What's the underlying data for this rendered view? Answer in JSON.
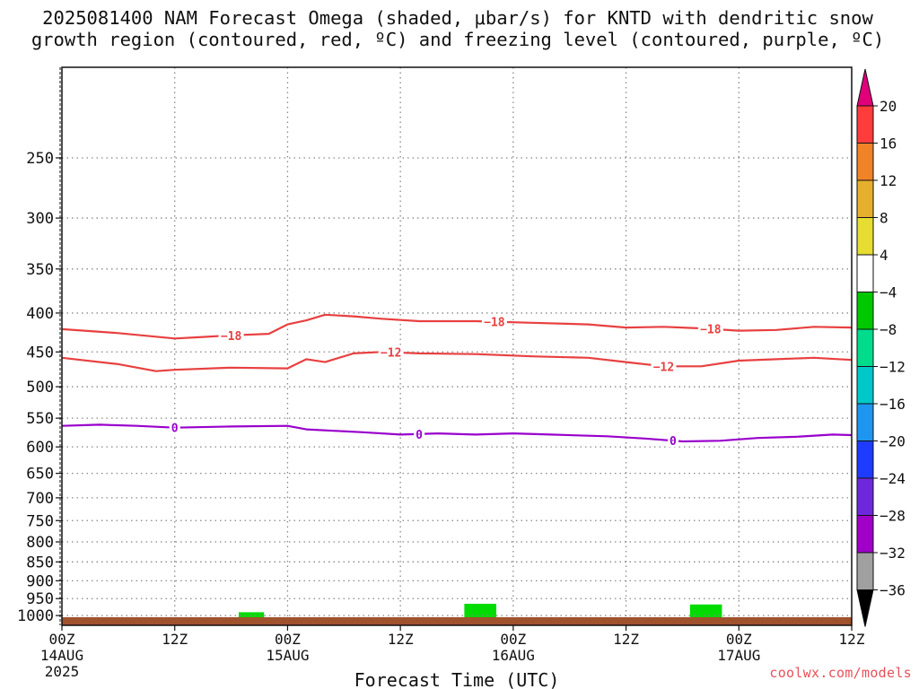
{
  "title": {
    "line1": "2025081400 NAM Forecast Omega (shaded, μbar/s) for KNTD with dendritic snow",
    "line2": "growth region (contoured, red, ºC) and freezing level (contoured, purple, ºC)"
  },
  "watermark": "coolwx.com/models",
  "chart_data": {
    "type": "time-height cross section",
    "xlabel": "Forecast Time (UTC)",
    "ylabel": "",
    "x_range_hours": [
      0,
      84
    ],
    "y_log_scale": true,
    "y_range_hPa": [
      1030,
      190
    ],
    "grid": true,
    "x_ticks": [
      {
        "hour": 0,
        "label": "00Z",
        "date": "14AUG",
        "year": "2025"
      },
      {
        "hour": 12,
        "label": "12Z",
        "date": "",
        "year": ""
      },
      {
        "hour": 24,
        "label": "00Z",
        "date": "15AUG",
        "year": ""
      },
      {
        "hour": 36,
        "label": "12Z",
        "date": "",
        "year": ""
      },
      {
        "hour": 48,
        "label": "00Z",
        "date": "16AUG",
        "year": ""
      },
      {
        "hour": 60,
        "label": "12Z",
        "date": "",
        "year": ""
      },
      {
        "hour": 72,
        "label": "00Z",
        "date": "17AUG",
        "year": ""
      },
      {
        "hour": 84,
        "label": "12Z",
        "date": "",
        "year": ""
      }
    ],
    "y_ticks": [
      250,
      300,
      350,
      400,
      450,
      500,
      550,
      600,
      650,
      700,
      750,
      800,
      850,
      900,
      950,
      1000
    ],
    "colorbar": {
      "labels": [
        "20",
        "16",
        "12",
        "8",
        "4",
        "−4",
        "−8",
        "−12",
        "−16",
        "−20",
        "−24",
        "−28",
        "−32",
        "−36"
      ],
      "levels": [
        20,
        16,
        12,
        8,
        4,
        -4,
        -8,
        -12,
        -16,
        -20,
        -24,
        -28,
        -32,
        -36
      ],
      "top_extension_color": "#e0007a",
      "bottom_extension_color": "#000000",
      "bands": [
        {
          "from": 20,
          "to": 16,
          "color": "#ff3c3c"
        },
        {
          "from": 16,
          "to": 12,
          "color": "#f08228"
        },
        {
          "from": 12,
          "to": 8,
          "color": "#e6af2d"
        },
        {
          "from": 8,
          "to": 4,
          "color": "#e6dc32"
        },
        {
          "from": 4,
          "to": -4,
          "color": "#ffffff"
        },
        {
          "from": -4,
          "to": -8,
          "color": "#00c800"
        },
        {
          "from": -8,
          "to": -12,
          "color": "#00dc8c"
        },
        {
          "from": -12,
          "to": -16,
          "color": "#00c8c8"
        },
        {
          "from": -16,
          "to": -20,
          "color": "#1e96f0"
        },
        {
          "from": -20,
          "to": -24,
          "color": "#1e3cff"
        },
        {
          "from": -24,
          "to": -28,
          "color": "#6e28dc"
        },
        {
          "from": -28,
          "to": -32,
          "color": "#a000c8"
        },
        {
          "from": -32,
          "to": -36,
          "color": "#a0a0a0"
        }
      ]
    },
    "contours": [
      {
        "name": "-18",
        "label": "−18",
        "color": "#e84040",
        "points": [
          [
            0,
            420
          ],
          [
            6,
            425
          ],
          [
            12,
            432
          ],
          [
            15,
            430
          ],
          [
            18,
            428
          ],
          [
            22,
            426
          ],
          [
            24,
            414
          ],
          [
            26,
            409
          ],
          [
            28,
            402
          ],
          [
            31,
            404
          ],
          [
            34,
            407
          ],
          [
            38,
            410
          ],
          [
            44,
            410
          ],
          [
            50,
            412
          ],
          [
            56,
            414
          ],
          [
            60,
            418
          ],
          [
            64,
            417
          ],
          [
            68,
            419
          ],
          [
            72,
            422
          ],
          [
            76,
            421
          ],
          [
            80,
            417
          ],
          [
            84,
            418
          ]
        ],
        "label_at_hours": [
          18,
          46,
          69
        ]
      },
      {
        "name": "-12",
        "label": "−12",
        "color": "#e84040",
        "points": [
          [
            0,
            458
          ],
          [
            6,
            467
          ],
          [
            10,
            477
          ],
          [
            12,
            475
          ],
          [
            18,
            472
          ],
          [
            24,
            473
          ],
          [
            26,
            460
          ],
          [
            28,
            464
          ],
          [
            31,
            452
          ],
          [
            34,
            450
          ],
          [
            38,
            452
          ],
          [
            44,
            453
          ],
          [
            50,
            456
          ],
          [
            56,
            458
          ],
          [
            60,
            464
          ],
          [
            64,
            470
          ],
          [
            68,
            470
          ],
          [
            72,
            462
          ],
          [
            76,
            460
          ],
          [
            80,
            458
          ],
          [
            84,
            461
          ]
        ],
        "label_at_hours": [
          35,
          64
        ]
      },
      {
        "name": "0",
        "label": "0",
        "color": "#9900cc",
        "points": [
          [
            0,
            563
          ],
          [
            4,
            561
          ],
          [
            8,
            563
          ],
          [
            12,
            566
          ],
          [
            18,
            564
          ],
          [
            24,
            563
          ],
          [
            26,
            569
          ],
          [
            32,
            574
          ],
          [
            36,
            578
          ],
          [
            40,
            576
          ],
          [
            44,
            578
          ],
          [
            48,
            576
          ],
          [
            52,
            578
          ],
          [
            58,
            581
          ],
          [
            62,
            585
          ],
          [
            66,
            590
          ],
          [
            70,
            589
          ],
          [
            74,
            584
          ],
          [
            78,
            582
          ],
          [
            82,
            578
          ],
          [
            84,
            579
          ]
        ],
        "label_at_hours": [
          12,
          38,
          65
        ]
      }
    ],
    "shaded_patches": [
      {
        "color": "#00dc00",
        "hour_start": 18.8,
        "hour_end": 21.5,
        "p_top": 990,
        "p_bottom": 1010
      },
      {
        "color": "#00dc00",
        "hour_start": 42.8,
        "hour_end": 46.2,
        "p_top": 965,
        "p_bottom": 1010
      },
      {
        "color": "#00dc00",
        "hour_start": 66.8,
        "hour_end": 70.2,
        "p_top": 967,
        "p_bottom": 1010
      }
    ],
    "surface": {
      "color": "#a0522d",
      "p_top": 1005
    }
  }
}
